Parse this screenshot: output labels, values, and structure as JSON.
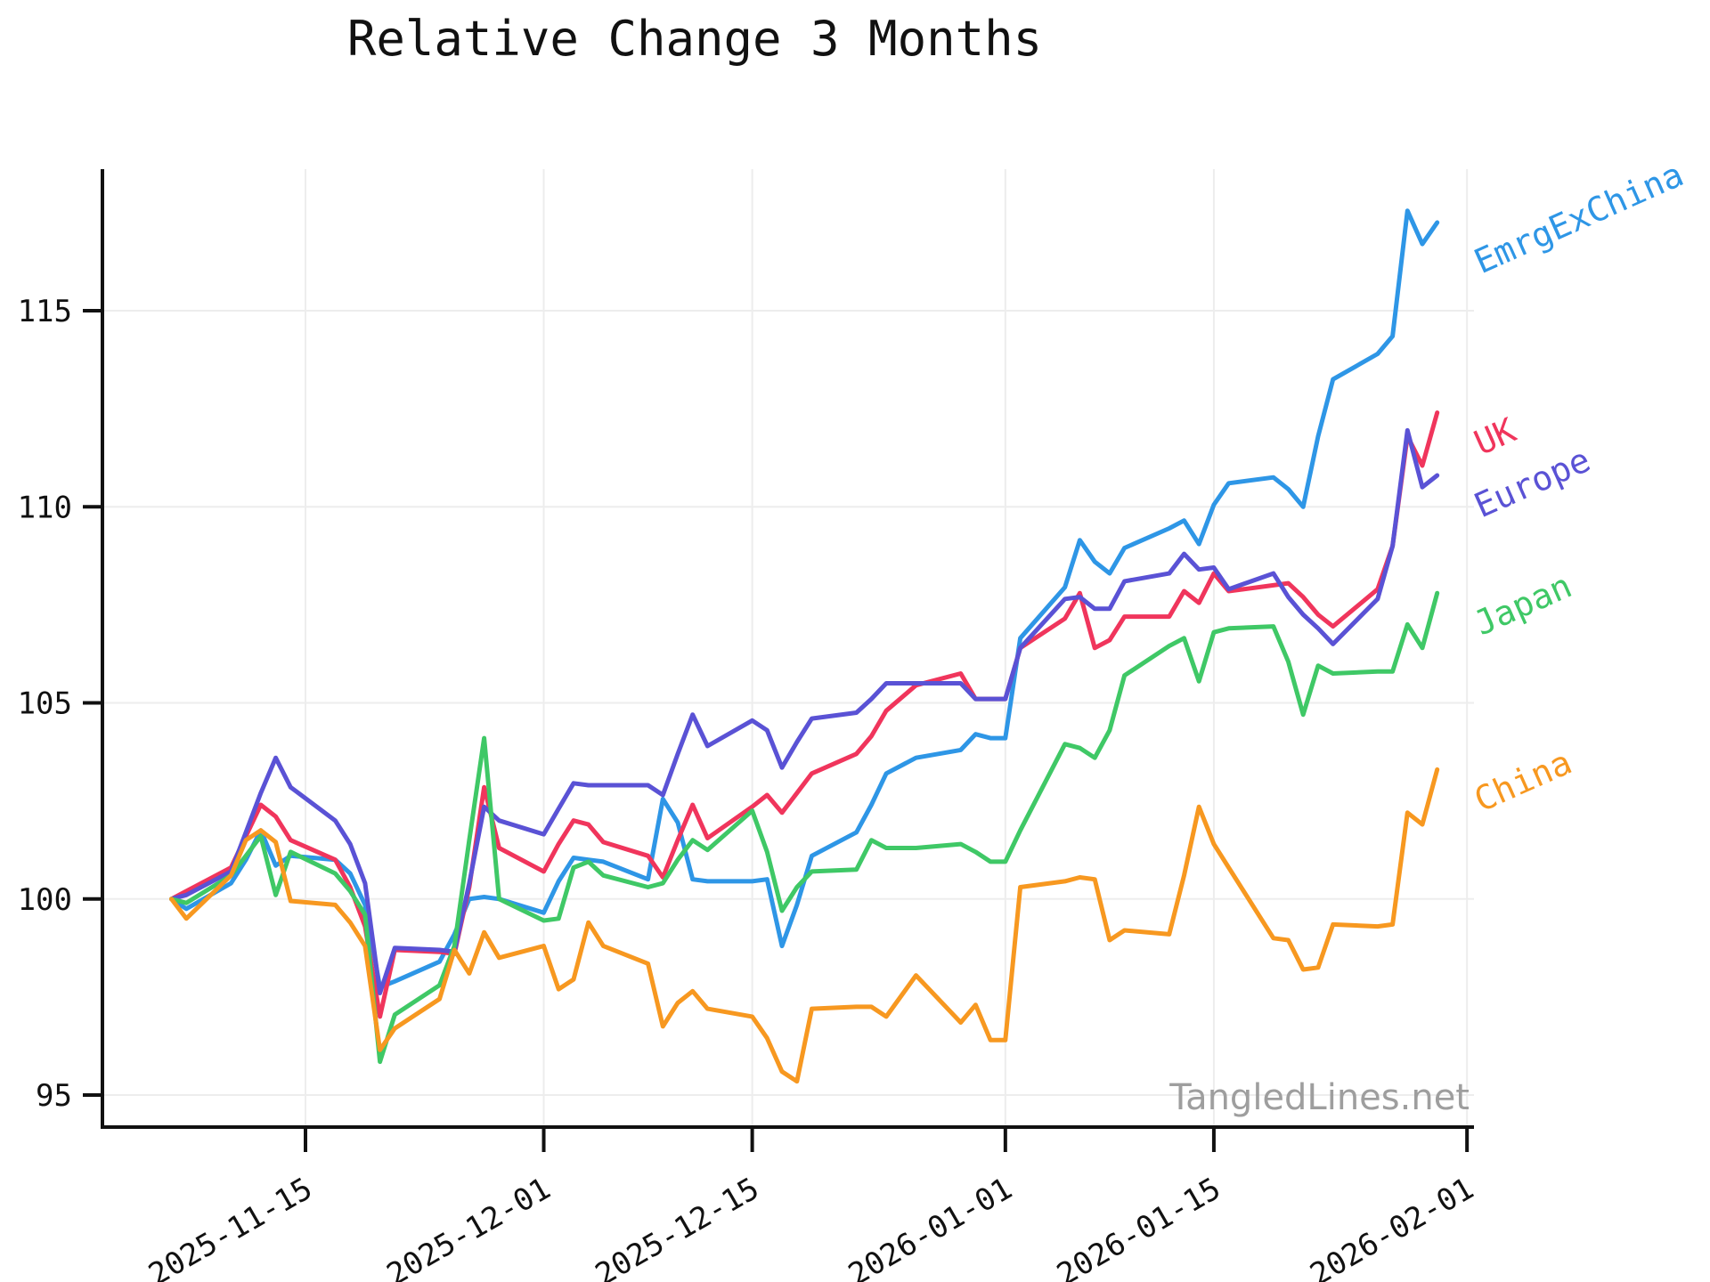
{
  "chart_data": {
    "type": "line",
    "title": "Relative Change 3 Months",
    "watermark": "TangledLines.net",
    "grid": true,
    "legend_position": "right-of-plot rotated labels",
    "xlabel": "",
    "ylabel": "",
    "y_ticks": [
      95,
      100,
      105,
      110,
      115
    ],
    "ylim": [
      94.2,
      118.6
    ],
    "x_tick_labels": [
      "2025-11-15",
      "2025-12-01",
      "2025-12-15",
      "2026-01-01",
      "2026-01-15",
      "2026-02-01"
    ],
    "dates": [
      "2025-11-06",
      "2025-11-07",
      "2025-11-10",
      "2025-11-11",
      "2025-11-12",
      "2025-11-13",
      "2025-11-14",
      "2025-11-17",
      "2025-11-18",
      "2025-11-19",
      "2025-11-20",
      "2025-11-21",
      "2025-11-24",
      "2025-11-25",
      "2025-11-26",
      "2025-11-27",
      "2025-11-28",
      "2025-12-01",
      "2025-12-02",
      "2025-12-03",
      "2025-12-04",
      "2025-12-05",
      "2025-12-08",
      "2025-12-09",
      "2025-12-10",
      "2025-12-11",
      "2025-12-12",
      "2025-12-15",
      "2025-12-16",
      "2025-12-17",
      "2025-12-18",
      "2025-12-19",
      "2025-12-22",
      "2025-12-23",
      "2025-12-24",
      "2025-12-26",
      "2025-12-29",
      "2025-12-30",
      "2025-12-31",
      "2026-01-01",
      "2026-01-02",
      "2026-01-05",
      "2026-01-06",
      "2026-01-07",
      "2026-01-08",
      "2026-01-09",
      "2026-01-12",
      "2026-01-13",
      "2026-01-14",
      "2026-01-15",
      "2026-01-16",
      "2026-01-19",
      "2026-01-20",
      "2026-01-21",
      "2026-01-22",
      "2026-01-23",
      "2026-01-26",
      "2026-01-27",
      "2026-01-28",
      "2026-01-29",
      "2026-01-30"
    ],
    "series": [
      {
        "name": "EmrgExChina",
        "color": "#2e96e6",
        "values": [
          100.0,
          99.75,
          100.4,
          101.0,
          101.75,
          100.85,
          101.1,
          101.0,
          100.65,
          99.85,
          97.75,
          97.9,
          98.4,
          99.1,
          100.0,
          100.05,
          100.0,
          99.65,
          100.45,
          101.05,
          101.0,
          100.95,
          100.5,
          102.55,
          101.95,
          100.5,
          100.45,
          100.45,
          100.5,
          98.8,
          99.85,
          101.1,
          101.7,
          102.4,
          103.2,
          103.6,
          103.8,
          104.2,
          104.1,
          104.1,
          106.65,
          107.95,
          109.15,
          108.6,
          108.3,
          108.95,
          109.45,
          109.65,
          109.05,
          110.05,
          110.6,
          110.75,
          110.45,
          110.0,
          111.8,
          113.25,
          113.9,
          114.35,
          117.55,
          116.7,
          117.25
        ]
      },
      {
        "name": "UK",
        "color": "#f0355c",
        "values": [
          100.0,
          100.2,
          100.8,
          101.6,
          102.4,
          102.1,
          101.5,
          101.0,
          100.3,
          99.3,
          97.0,
          98.7,
          98.65,
          98.6,
          100.3,
          102.85,
          101.3,
          100.7,
          101.4,
          102.0,
          101.9,
          101.45,
          101.1,
          100.55,
          101.5,
          102.4,
          101.55,
          102.35,
          102.65,
          102.2,
          102.7,
          103.2,
          103.7,
          104.15,
          104.8,
          105.45,
          105.75,
          105.1,
          105.1,
          105.1,
          106.4,
          107.15,
          107.8,
          106.4,
          106.6,
          107.2,
          107.2,
          107.85,
          107.55,
          108.3,
          107.85,
          108.0,
          108.05,
          107.7,
          107.25,
          106.95,
          107.9,
          109.0,
          111.8,
          111.05,
          112.4
        ]
      },
      {
        "name": "Europe",
        "color": "#5a52d5",
        "values": [
          100.0,
          100.1,
          100.7,
          101.7,
          102.7,
          103.6,
          102.85,
          102.0,
          101.4,
          100.4,
          97.6,
          98.75,
          98.7,
          98.65,
          100.4,
          102.35,
          102.0,
          101.65,
          102.3,
          102.95,
          102.9,
          102.9,
          102.9,
          102.65,
          103.7,
          104.7,
          103.9,
          104.55,
          104.3,
          103.35,
          104.0,
          104.6,
          104.75,
          105.1,
          105.5,
          105.5,
          105.5,
          105.1,
          105.1,
          105.1,
          106.4,
          107.65,
          107.7,
          107.4,
          107.4,
          108.1,
          108.3,
          108.8,
          108.4,
          108.45,
          107.9,
          108.3,
          107.7,
          107.25,
          106.9,
          106.5,
          107.65,
          109.0,
          111.95,
          110.5,
          110.8
        ]
      },
      {
        "name": "Japan",
        "color": "#3fc866",
        "values": [
          100.0,
          99.9,
          100.6,
          101.1,
          101.6,
          100.1,
          101.2,
          100.65,
          100.2,
          99.6,
          95.85,
          97.05,
          97.8,
          98.8,
          101.5,
          104.1,
          100.0,
          99.45,
          99.5,
          100.8,
          100.95,
          100.6,
          100.3,
          100.4,
          101.0,
          101.5,
          101.25,
          102.25,
          101.2,
          99.7,
          100.3,
          100.7,
          100.75,
          101.5,
          101.3,
          101.3,
          101.4,
          101.2,
          100.95,
          100.95,
          101.75,
          103.95,
          103.85,
          103.6,
          104.3,
          105.7,
          106.45,
          106.65,
          105.55,
          106.8,
          106.9,
          106.95,
          106.05,
          104.7,
          105.95,
          105.75,
          105.8,
          105.8,
          107.0,
          106.4,
          107.8
        ]
      },
      {
        "name": "China",
        "color": "#f79820",
        "values": [
          100.0,
          99.5,
          100.6,
          101.5,
          101.75,
          101.45,
          99.95,
          99.85,
          99.4,
          98.8,
          96.15,
          96.7,
          97.45,
          98.7,
          98.1,
          99.15,
          98.5,
          98.8,
          97.7,
          97.95,
          99.4,
          98.8,
          98.35,
          96.75,
          97.35,
          97.65,
          97.2,
          97.0,
          96.45,
          95.6,
          95.35,
          97.2,
          97.25,
          97.25,
          97.0,
          98.05,
          96.85,
          97.3,
          96.4,
          96.4,
          100.3,
          100.45,
          100.55,
          100.5,
          98.95,
          99.2,
          99.1,
          100.6,
          102.35,
          101.4,
          100.8,
          99.0,
          98.95,
          98.2,
          98.25,
          99.35,
          99.3,
          99.35,
          102.2,
          101.9,
          103.3
        ]
      }
    ]
  }
}
